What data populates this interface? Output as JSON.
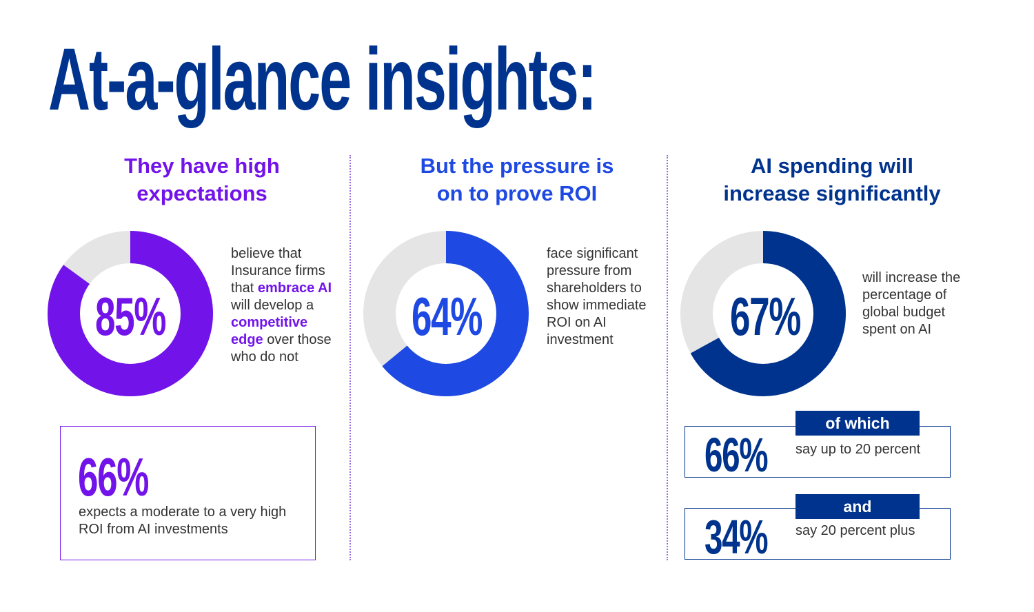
{
  "title": "At-a-glance insights:",
  "colors": {
    "purple": "#7213EA",
    "blue": "#1E49E2",
    "navy": "#00338D",
    "track": "#E5E5E5"
  },
  "chart_data": [
    {
      "type": "pie",
      "variant": "donut",
      "values": [
        85,
        15
      ],
      "center_label": "85%",
      "color": "#7213EA"
    },
    {
      "type": "pie",
      "variant": "donut",
      "values": [
        64,
        36
      ],
      "center_label": "64%",
      "color": "#1E49E2"
    },
    {
      "type": "pie",
      "variant": "donut",
      "values": [
        67,
        33
      ],
      "center_label": "67%",
      "color": "#00338D"
    }
  ],
  "columns": [
    {
      "heading": [
        "They have high",
        "expectations"
      ],
      "description": [
        {
          "t": "believe that Insurance firms that ",
          "b": false
        },
        {
          "t": "embrace AI",
          "b": true
        },
        {
          "t": " will develop a ",
          "b": false
        },
        {
          "t": "competitive edge",
          "b": true
        },
        {
          "t": " over those who do not",
          "b": false
        }
      ],
      "stat_box": {
        "value": "66%",
        "text": "expects a moderate to a very high ROI from AI investments"
      }
    },
    {
      "heading": [
        "But the pressure is",
        "on to prove ROI"
      ],
      "description": [
        {
          "t": "face significant pressure from shareholders to show immediate ROI on AI investment",
          "b": false
        }
      ]
    },
    {
      "heading": [
        "AI spending will",
        "increase significantly"
      ],
      "description": [
        {
          "t": "will increase the percentage of global budget spent on AI",
          "b": false
        }
      ],
      "breakdown": [
        {
          "label": "of which",
          "value": "66%",
          "text": "say up to 20 percent"
        },
        {
          "label": "and",
          "value": "34%",
          "text": "say 20 percent plus"
        }
      ]
    }
  ]
}
